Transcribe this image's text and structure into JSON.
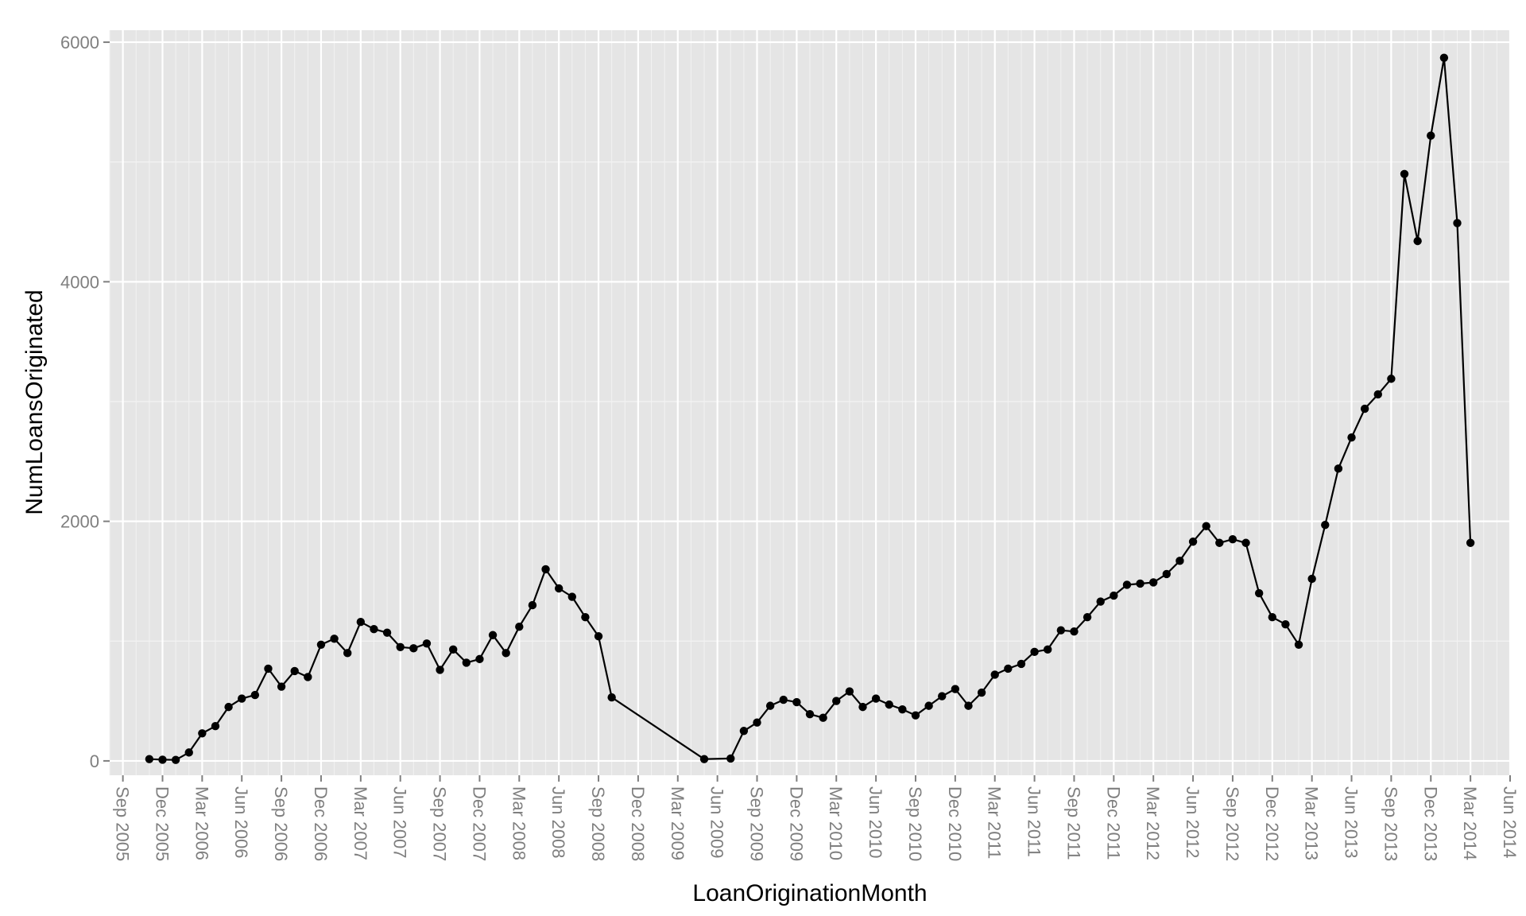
{
  "chart_data": {
    "type": "line",
    "xlabel": "LoanOriginationMonth",
    "ylabel": "NumLoansOriginated",
    "ylim": [
      -120,
      6100
    ],
    "xlim": [
      "2005-08",
      "2014-06"
    ],
    "grid": true,
    "legend": "none",
    "colors": {
      "panel": "#e5e5e5",
      "grid_major": "#ffffff",
      "grid_minor": "#f2f2f2",
      "line": "#000000",
      "tick_text": "#7f7f7f"
    },
    "y_ticks": [
      "0",
      "2000",
      "4000",
      "6000"
    ],
    "x_tick_labels": [
      "Sep 2005",
      "Dec 2005",
      "Mar 2006",
      "Jun 2006",
      "Sep 2006",
      "Dec 2006",
      "Mar 2007",
      "Jun 2007",
      "Sep 2007",
      "Dec 2007",
      "Mar 2008",
      "Jun 2008",
      "Sep 2008",
      "Dec 2008",
      "Mar 2009",
      "Jun 2009",
      "Sep 2009",
      "Dec 2009",
      "Mar 2010",
      "Jun 2010",
      "Sep 2010",
      "Dec 2010",
      "Mar 2011",
      "Jun 2011",
      "Sep 2011",
      "Dec 2011",
      "Mar 2012",
      "Jun 2012",
      "Sep 2012",
      "Dec 2012",
      "Mar 2013",
      "Jun 2013",
      "Sep 2013",
      "Dec 2013",
      "Mar 2014",
      "Jun 2014"
    ],
    "series": [
      {
        "x": [
          "2005-11",
          "2005-12",
          "2006-01",
          "2006-02",
          "2006-03",
          "2006-04",
          "2006-05",
          "2006-06",
          "2006-07",
          "2006-08",
          "2006-09",
          "2006-10",
          "2006-11",
          "2006-12",
          "2007-01",
          "2007-02",
          "2007-03",
          "2007-04",
          "2007-05",
          "2007-06",
          "2007-07",
          "2007-08",
          "2007-09",
          "2007-10",
          "2007-11",
          "2007-12",
          "2008-01",
          "2008-02",
          "2008-03",
          "2008-04",
          "2008-05",
          "2008-06",
          "2008-07",
          "2008-08",
          "2008-09",
          "2008-10",
          "2009-05",
          "2009-07",
          "2009-08",
          "2009-09",
          "2009-10",
          "2009-11",
          "2009-12",
          "2010-01",
          "2010-02",
          "2010-03",
          "2010-04",
          "2010-05",
          "2010-06",
          "2010-07",
          "2010-08",
          "2010-09",
          "2010-10",
          "2010-11",
          "2010-12",
          "2011-01",
          "2011-02",
          "2011-03",
          "2011-04",
          "2011-05",
          "2011-06",
          "2011-07",
          "2011-08",
          "2011-09",
          "2011-10",
          "2011-11",
          "2011-12",
          "2012-01",
          "2012-02",
          "2012-03",
          "2012-04",
          "2012-05",
          "2012-06",
          "2012-07",
          "2012-08",
          "2012-09",
          "2012-10",
          "2012-11",
          "2012-12",
          "2013-01",
          "2013-02",
          "2013-03",
          "2013-04",
          "2013-05",
          "2013-06",
          "2013-07",
          "2013-08",
          "2013-09",
          "2013-10",
          "2013-11",
          "2013-12",
          "2014-01",
          "2014-02",
          "2014-03"
        ],
        "y": [
          15,
          10,
          8,
          70,
          230,
          290,
          450,
          520,
          550,
          770,
          620,
          750,
          700,
          970,
          1020,
          900,
          1160,
          1100,
          1070,
          950,
          940,
          980,
          760,
          930,
          820,
          850,
          1050,
          900,
          1120,
          1300,
          1600,
          1440,
          1370,
          1200,
          1040,
          530,
          15,
          20,
          250,
          320,
          460,
          510,
          490,
          390,
          360,
          500,
          580,
          450,
          520,
          470,
          430,
          380,
          460,
          540,
          600,
          460,
          570,
          720,
          770,
          810,
          910,
          930,
          1090,
          1080,
          1200,
          1330,
          1380,
          1470,
          1480,
          1490,
          1560,
          1670,
          1830,
          1960,
          1820,
          1850,
          1820,
          1400,
          1200,
          1140,
          970,
          1520,
          1970,
          2440,
          2700,
          2940,
          3060,
          3190,
          4900,
          4340,
          5220,
          5870,
          4490,
          1820
        ]
      }
    ]
  }
}
